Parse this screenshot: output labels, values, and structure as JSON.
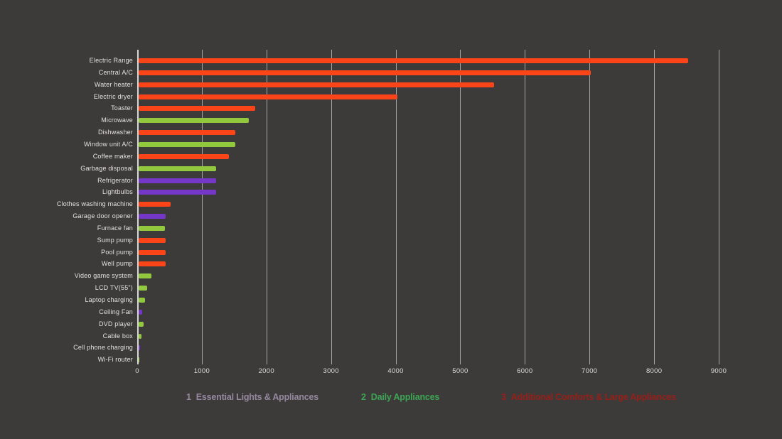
{
  "page": {
    "background_color": "#3d3a3a"
  },
  "colors": {
    "background": "#3d3a3a",
    "gridline": "rgba(255,255,255,0.55)",
    "axis_line": "rgba(255,255,255,0.8)",
    "label_text": "#e3e0e0"
  },
  "chart_data": {
    "type": "bar",
    "orientation": "horizontal",
    "title": "",
    "xlabel": "",
    "ylabel": "",
    "xlim": [
      0,
      9000
    ],
    "x_ticks": [
      0,
      1000,
      2000,
      3000,
      4000,
      5000,
      6000,
      7000,
      8000,
      9000
    ],
    "grid": true,
    "legend_position": "bottom",
    "categories": [
      "Electric Range",
      "Central A/C",
      "Water heater",
      "Electric dryer",
      "Toaster",
      "Microwave",
      "Dishwasher",
      "Window unit A/C",
      "Coffee maker",
      "Garbage disposal",
      "Refrigerator",
      "Lightbulbs",
      "Clothes washing machine",
      "Garage door opener",
      "Furnace fan",
      "Sump pump",
      "Pool pump",
      "Well pump",
      "Video game system",
      "LCD TV(55\")",
      "Laptop charging",
      "Ceiling Fan",
      "DVD player",
      "Cable box",
      "Cell phone charging",
      "Wi-Fi router"
    ],
    "rows": [
      {
        "label": "Electric Range",
        "value": 8500,
        "category": "3"
      },
      {
        "label": "Central A/C",
        "value": 7000,
        "category": "3"
      },
      {
        "label": "Water heater",
        "value": 5500,
        "category": "3"
      },
      {
        "label": "Electric dryer",
        "value": 4000,
        "category": "3"
      },
      {
        "label": "Toaster",
        "value": 1800,
        "category": "3"
      },
      {
        "label": "Microwave",
        "value": 1700,
        "category": "2"
      },
      {
        "label": "Dishwasher",
        "value": 1500,
        "category": "3"
      },
      {
        "label": "Window unit A/C",
        "value": 1500,
        "category": "2"
      },
      {
        "label": "Coffee maker",
        "value": 1400,
        "category": "3"
      },
      {
        "label": "Garbage disposal",
        "value": 1200,
        "category": "2"
      },
      {
        "label": "Refrigerator",
        "value": 1200,
        "category": "1"
      },
      {
        "label": "Lightbulbs",
        "value": 1200,
        "category": "1"
      },
      {
        "label": "Clothes washing machine",
        "value": 500,
        "category": "3"
      },
      {
        "label": "Garage door opener",
        "value": 420,
        "category": "1"
      },
      {
        "label": "Furnace fan",
        "value": 410,
        "category": "2"
      },
      {
        "label": "Sump pump",
        "value": 420,
        "category": "3"
      },
      {
        "label": "Pool pump",
        "value": 420,
        "category": "3"
      },
      {
        "label": "Well pump",
        "value": 420,
        "category": "3"
      },
      {
        "label": "Video game system",
        "value": 200,
        "category": "2"
      },
      {
        "label": "LCD TV(55\")",
        "value": 130,
        "category": "2"
      },
      {
        "label": "Laptop charging",
        "value": 100,
        "category": "2"
      },
      {
        "label": "Ceiling Fan",
        "value": 60,
        "category": "1"
      },
      {
        "label": "DVD player",
        "value": 75,
        "category": "2"
      },
      {
        "label": "Cable box",
        "value": 45,
        "category": "2"
      },
      {
        "label": "Cell phone charging",
        "value": 25,
        "category": "1"
      },
      {
        "label": "Wi-Fi router",
        "value": 10,
        "category": "2"
      }
    ],
    "category_colors": {
      "1": "#7537c7",
      "2": "#92c83e",
      "3": "#fb4417"
    },
    "legend": [
      {
        "number": "1",
        "label": "Essential Lights & Appliances",
        "text_color": "#95889f",
        "bar_color": "#7537c7"
      },
      {
        "number": "2",
        "label": "Daily Appliances",
        "text_color": "#3ca553",
        "bar_color": "#92c83e"
      },
      {
        "number": "3",
        "label": "Additional Comforts & Large Appliances",
        "text_color": "#962019",
        "bar_color": "#fb4417"
      }
    ]
  }
}
